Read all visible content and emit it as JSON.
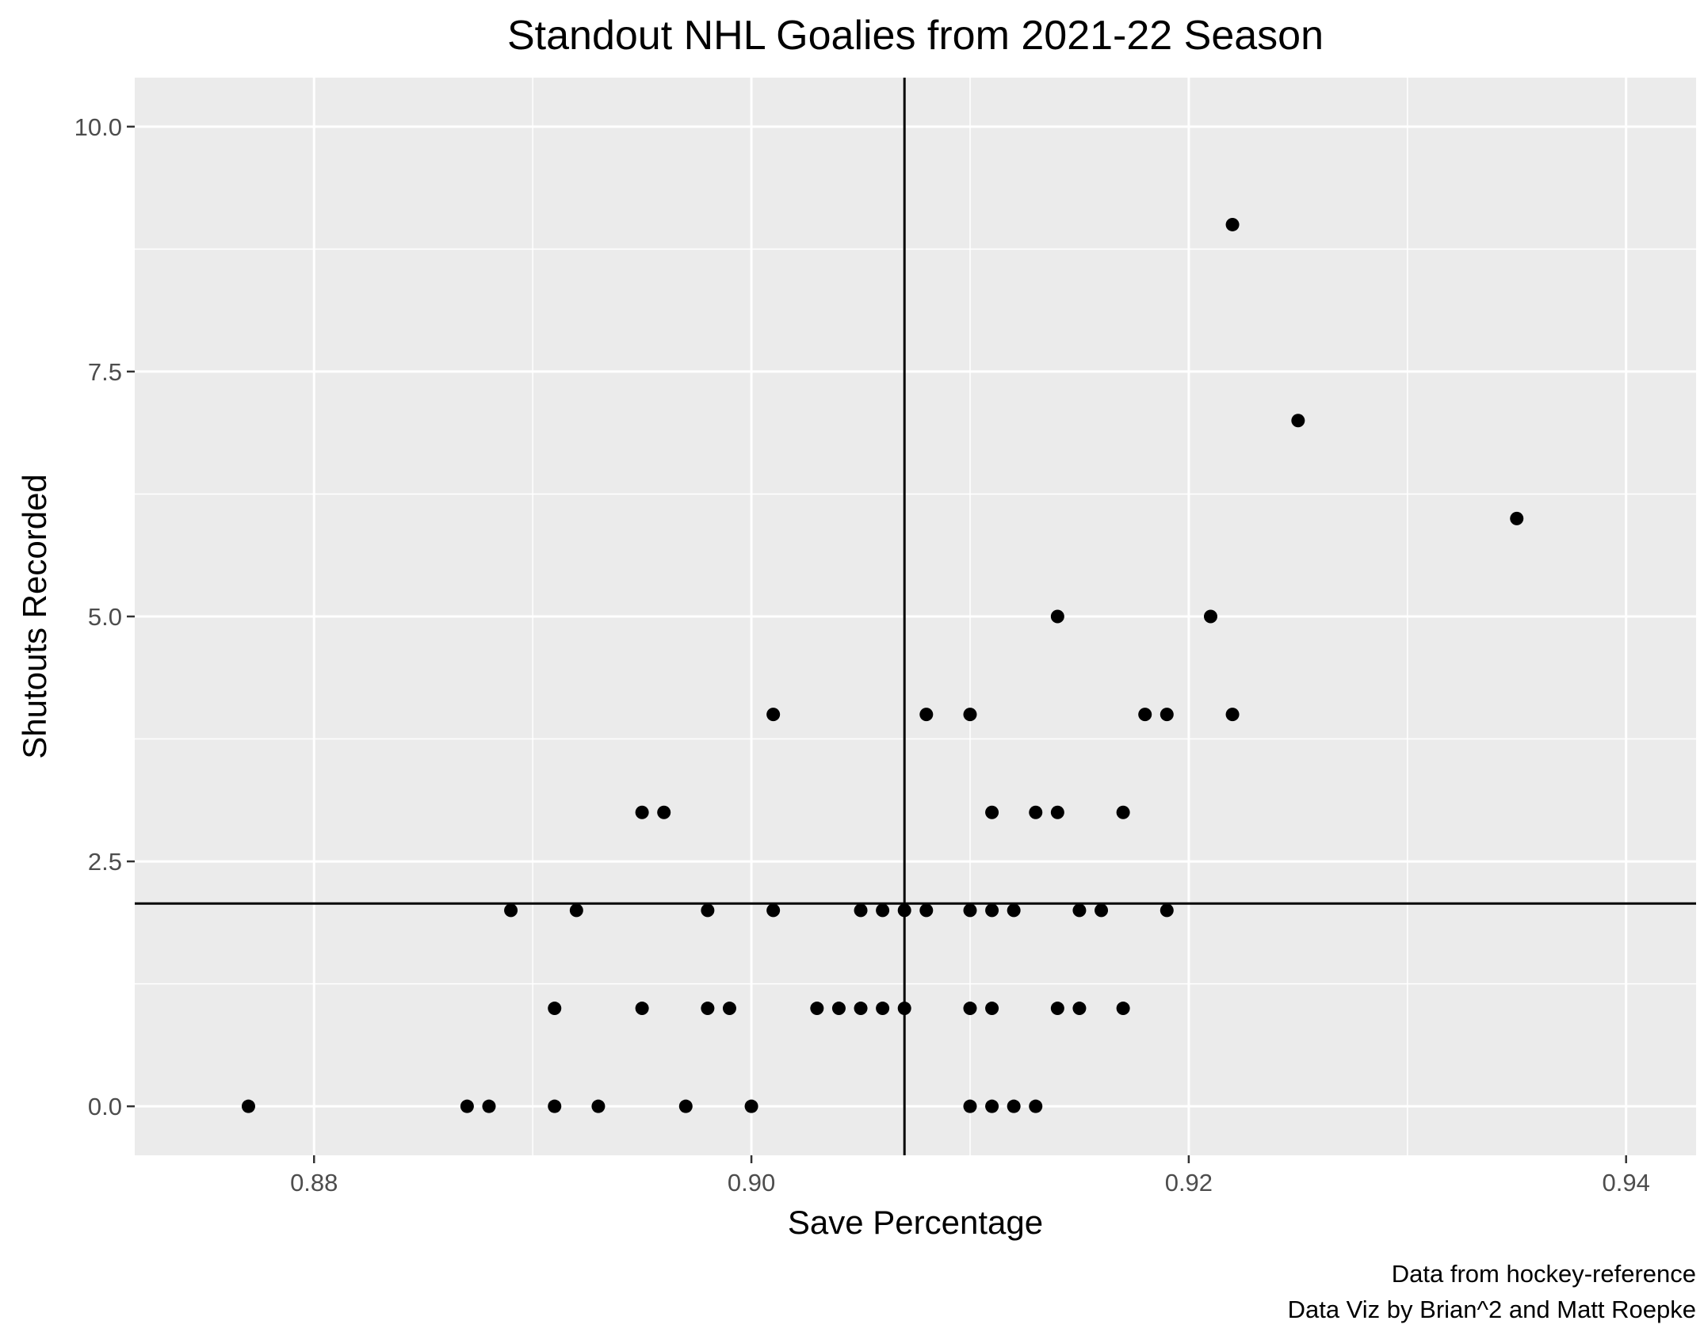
{
  "chart_data": {
    "type": "scatter",
    "title": "Standout NHL Goalies from 2021-22 Season",
    "xlabel": "Save Percentage",
    "ylabel": "Shutouts Recorded",
    "caption": [
      "Data from hockey-reference",
      "Data Viz by Brian^2 and Matt Roepke"
    ],
    "xlim": [
      0.8718,
      0.9432
    ],
    "ylim": [
      -0.5,
      10.5
    ],
    "x_ticks": [
      {
        "value": 0.88,
        "label": "0.88"
      },
      {
        "value": 0.9,
        "label": "0.90"
      },
      {
        "value": 0.92,
        "label": "0.92"
      },
      {
        "value": 0.94,
        "label": "0.94"
      }
    ],
    "y_ticks": [
      {
        "value": 0.0,
        "label": "0.0"
      },
      {
        "value": 2.5,
        "label": "2.5"
      },
      {
        "value": 5.0,
        "label": "5.0"
      },
      {
        "value": 7.5,
        "label": "7.5"
      },
      {
        "value": 10.0,
        "label": "10.0"
      }
    ],
    "reference_lines": {
      "x": 0.907,
      "y": 2.07
    },
    "grid": true,
    "colors": {
      "panel": "#ebebeb",
      "grid": "#ffffff",
      "point": "#000000",
      "line": "#000000"
    },
    "points": [
      {
        "x": 0.877,
        "y": 0
      },
      {
        "x": 0.887,
        "y": 0
      },
      {
        "x": 0.888,
        "y": 0
      },
      {
        "x": 0.891,
        "y": 0
      },
      {
        "x": 0.893,
        "y": 0
      },
      {
        "x": 0.897,
        "y": 0
      },
      {
        "x": 0.9,
        "y": 0
      },
      {
        "x": 0.91,
        "y": 0
      },
      {
        "x": 0.911,
        "y": 0
      },
      {
        "x": 0.912,
        "y": 0
      },
      {
        "x": 0.913,
        "y": 0
      },
      {
        "x": 0.891,
        "y": 1
      },
      {
        "x": 0.895,
        "y": 1
      },
      {
        "x": 0.898,
        "y": 1
      },
      {
        "x": 0.899,
        "y": 1
      },
      {
        "x": 0.903,
        "y": 1
      },
      {
        "x": 0.904,
        "y": 1
      },
      {
        "x": 0.905,
        "y": 1
      },
      {
        "x": 0.906,
        "y": 1
      },
      {
        "x": 0.907,
        "y": 1
      },
      {
        "x": 0.91,
        "y": 1
      },
      {
        "x": 0.911,
        "y": 1
      },
      {
        "x": 0.914,
        "y": 1
      },
      {
        "x": 0.915,
        "y": 1
      },
      {
        "x": 0.917,
        "y": 1
      },
      {
        "x": 0.889,
        "y": 2
      },
      {
        "x": 0.892,
        "y": 2
      },
      {
        "x": 0.898,
        "y": 2
      },
      {
        "x": 0.901,
        "y": 2
      },
      {
        "x": 0.905,
        "y": 2
      },
      {
        "x": 0.906,
        "y": 2
      },
      {
        "x": 0.907,
        "y": 2
      },
      {
        "x": 0.908,
        "y": 2
      },
      {
        "x": 0.91,
        "y": 2
      },
      {
        "x": 0.911,
        "y": 2
      },
      {
        "x": 0.912,
        "y": 2
      },
      {
        "x": 0.915,
        "y": 2
      },
      {
        "x": 0.916,
        "y": 2
      },
      {
        "x": 0.919,
        "y": 2
      },
      {
        "x": 0.895,
        "y": 3
      },
      {
        "x": 0.896,
        "y": 3
      },
      {
        "x": 0.911,
        "y": 3
      },
      {
        "x": 0.913,
        "y": 3
      },
      {
        "x": 0.914,
        "y": 3
      },
      {
        "x": 0.917,
        "y": 3
      },
      {
        "x": 0.901,
        "y": 4
      },
      {
        "x": 0.908,
        "y": 4
      },
      {
        "x": 0.91,
        "y": 4
      },
      {
        "x": 0.918,
        "y": 4
      },
      {
        "x": 0.919,
        "y": 4
      },
      {
        "x": 0.922,
        "y": 4
      },
      {
        "x": 0.914,
        "y": 5
      },
      {
        "x": 0.921,
        "y": 5
      },
      {
        "x": 0.935,
        "y": 6
      },
      {
        "x": 0.925,
        "y": 7
      },
      {
        "x": 0.922,
        "y": 9
      }
    ]
  }
}
